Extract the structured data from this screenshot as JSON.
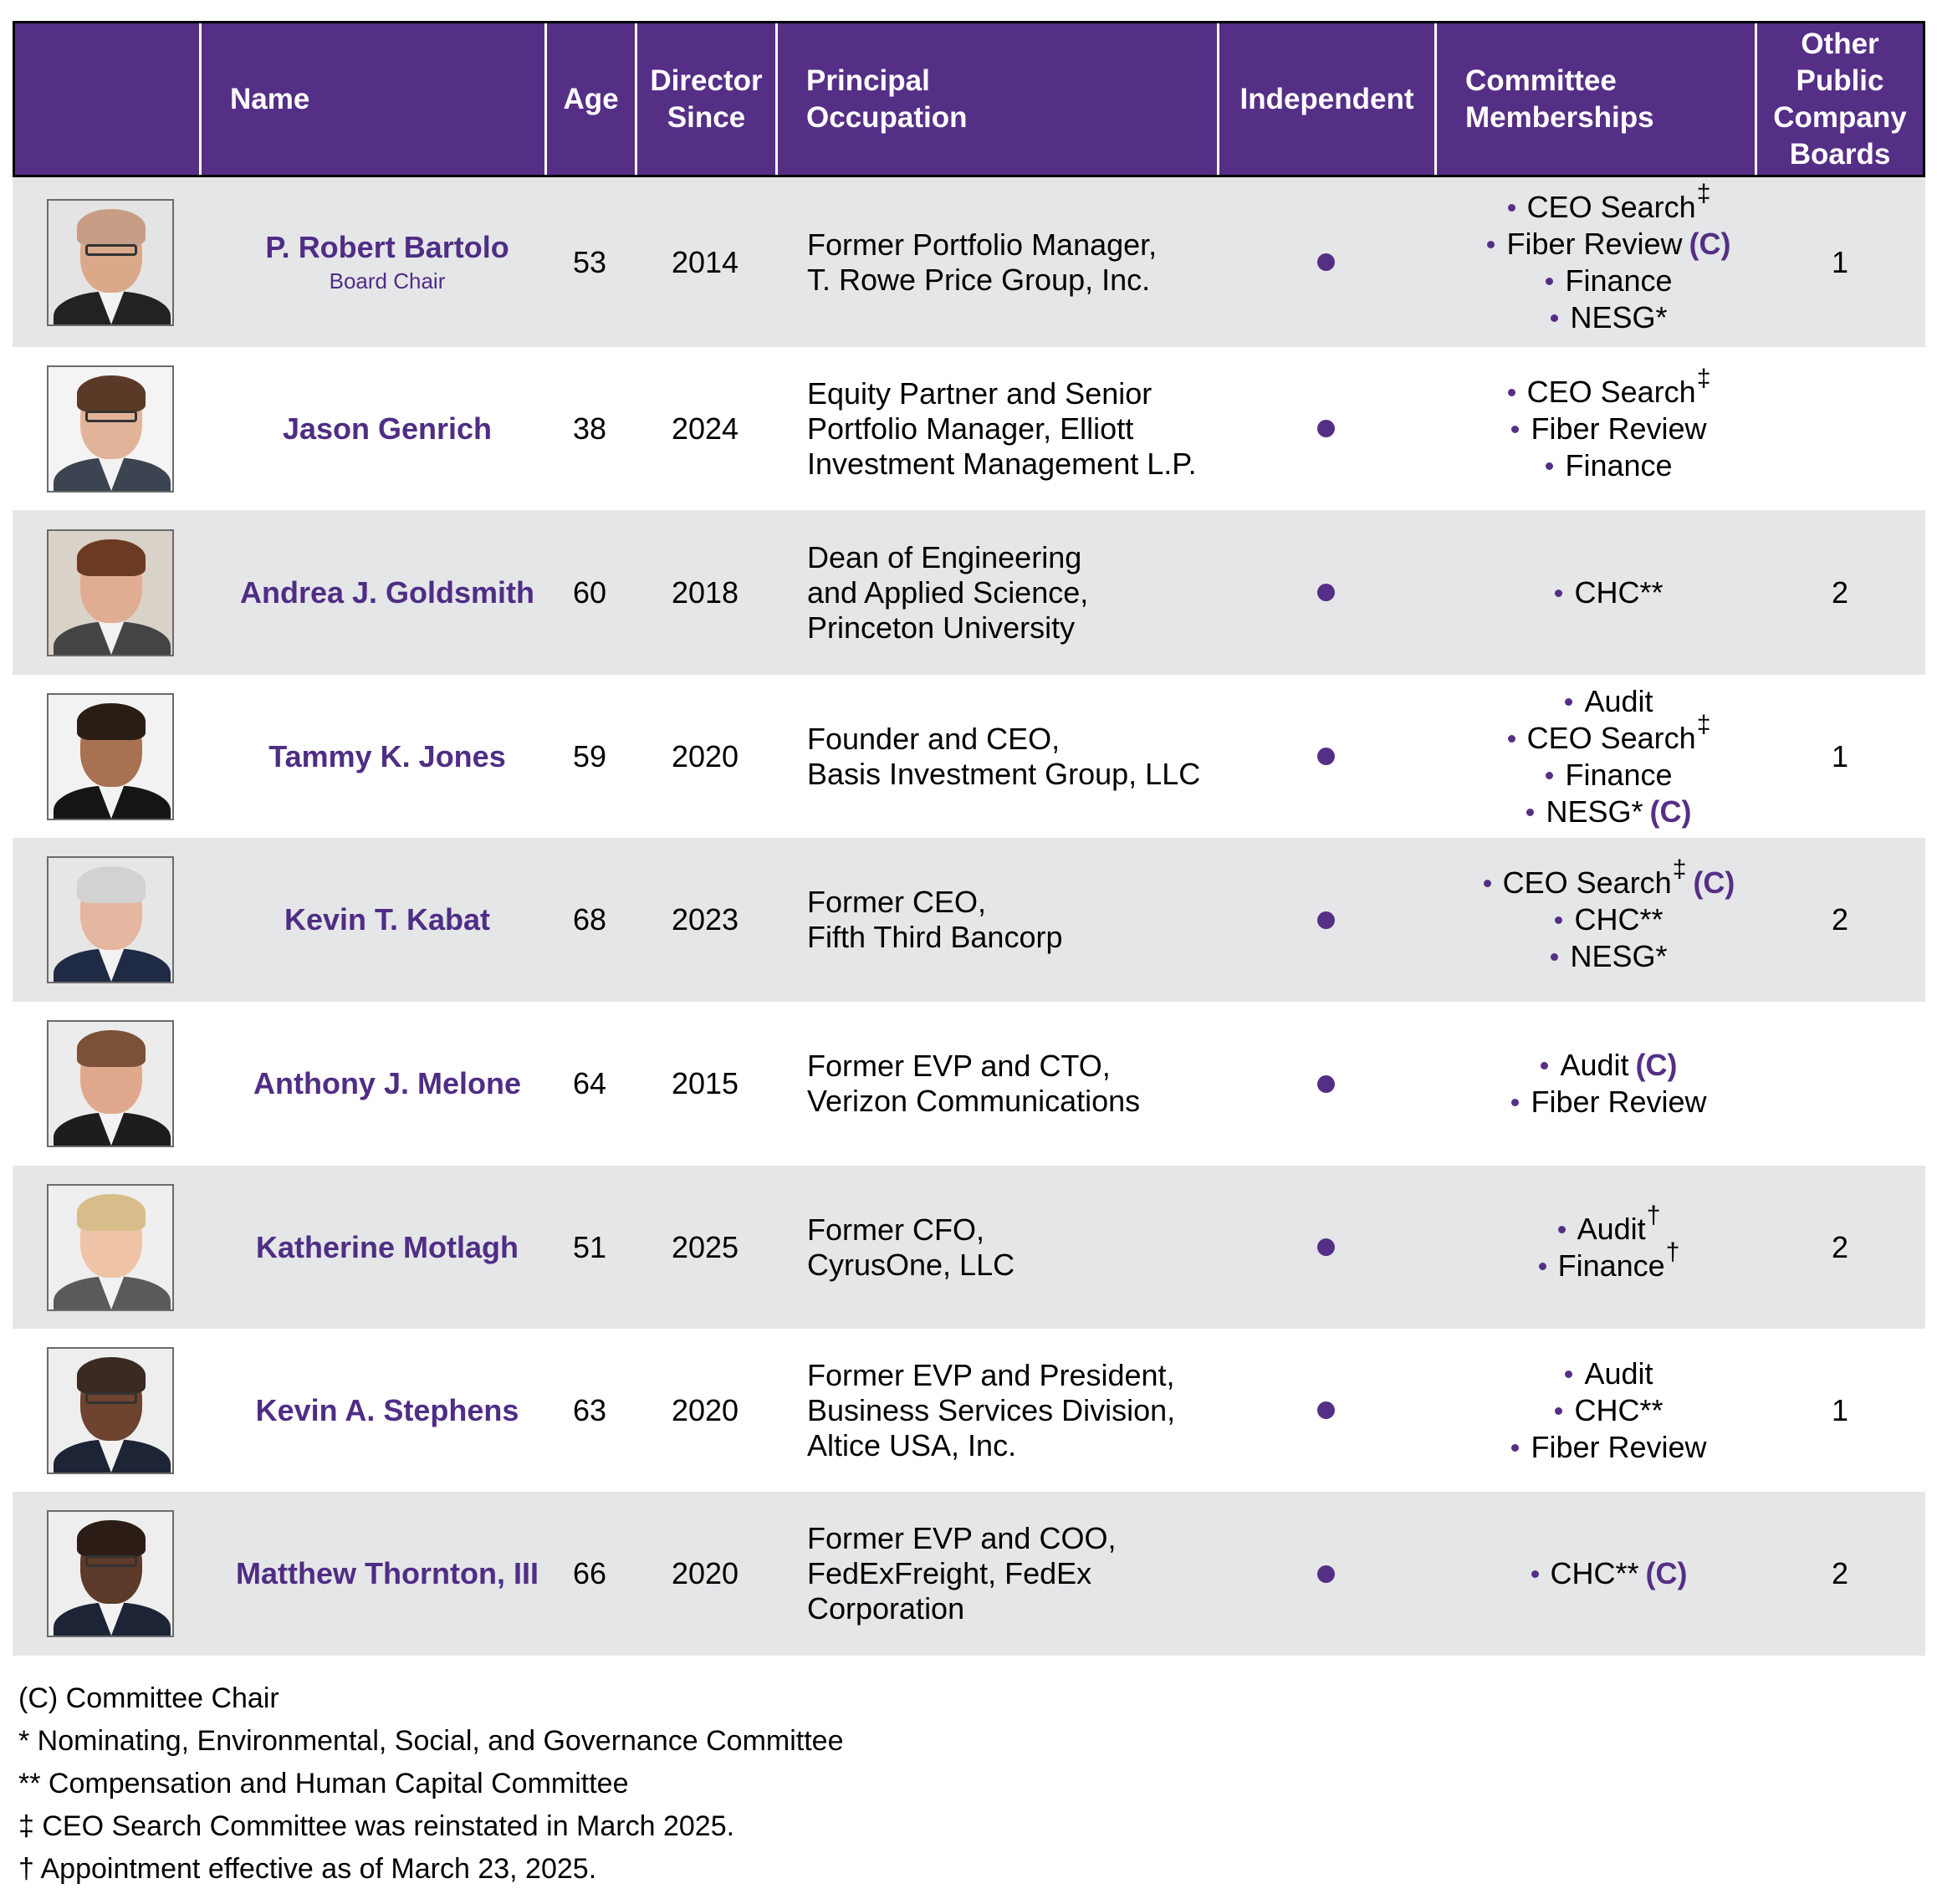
{
  "table": {
    "headers": {
      "photo": "",
      "name": "Name",
      "age": "Age",
      "director_since": "Director\nSince",
      "principal_occupation": "Principal\nOccupation",
      "independent": "Independent",
      "committee_memberships": "Committee\nMemberships",
      "other_boards": "Other\nPublic\nCompany\nBoards"
    },
    "rows": [
      {
        "name": "P. Robert Bartolo",
        "subtitle": "Board Chair",
        "age": "53",
        "director_since": "2014",
        "occupation": "Former Portfolio Manager,\nT. Rowe Price Group, Inc.",
        "independent": true,
        "committees": [
          {
            "label": "CEO Search",
            "mark": "‡",
            "chair": ""
          },
          {
            "label": "Fiber Review",
            "mark": "",
            "chair": "(C)"
          },
          {
            "label": "Finance",
            "mark": "",
            "chair": ""
          },
          {
            "label": "NESG*",
            "mark": "",
            "chair": ""
          }
        ],
        "other_boards": "1"
      },
      {
        "name": "Jason Genrich",
        "subtitle": "",
        "age": "38",
        "director_since": "2024",
        "occupation": "Equity Partner and Senior\nPortfolio Manager, Elliott\nInvestment Management L.P.",
        "independent": true,
        "committees": [
          {
            "label": "CEO Search",
            "mark": "‡",
            "chair": ""
          },
          {
            "label": "Fiber Review",
            "mark": "",
            "chair": ""
          },
          {
            "label": "Finance",
            "mark": "",
            "chair": ""
          }
        ],
        "other_boards": ""
      },
      {
        "name": "Andrea J. Goldsmith",
        "subtitle": "",
        "age": "60",
        "director_since": "2018",
        "occupation": "Dean of Engineering\nand Applied Science,\nPrinceton University",
        "independent": true,
        "committees": [
          {
            "label": "CHC**",
            "mark": "",
            "chair": ""
          }
        ],
        "other_boards": "2"
      },
      {
        "name": "Tammy K. Jones",
        "subtitle": "",
        "age": "59",
        "director_since": "2020",
        "occupation": "Founder and CEO,\nBasis Investment Group, LLC",
        "independent": true,
        "committees": [
          {
            "label": "Audit",
            "mark": "",
            "chair": ""
          },
          {
            "label": "CEO Search",
            "mark": "‡",
            "chair": ""
          },
          {
            "label": "Finance",
            "mark": "",
            "chair": ""
          },
          {
            "label": "NESG*",
            "mark": "",
            "chair": "(C)"
          }
        ],
        "other_boards": "1"
      },
      {
        "name": "Kevin T. Kabat",
        "subtitle": "",
        "age": "68",
        "director_since": "2023",
        "occupation": "Former CEO,\nFifth Third Bancorp",
        "independent": true,
        "committees": [
          {
            "label": "CEO Search",
            "mark": "‡",
            "chair": "(C)"
          },
          {
            "label": "CHC**",
            "mark": "",
            "chair": ""
          },
          {
            "label": "NESG*",
            "mark": "",
            "chair": ""
          }
        ],
        "other_boards": "2"
      },
      {
        "name": "Anthony J. Melone",
        "subtitle": "",
        "age": "64",
        "director_since": "2015",
        "occupation": "Former EVP and CTO,\nVerizon Communications",
        "independent": true,
        "committees": [
          {
            "label": "Audit",
            "mark": "",
            "chair": "(C)"
          },
          {
            "label": "Fiber Review",
            "mark": "",
            "chair": ""
          }
        ],
        "other_boards": ""
      },
      {
        "name": "Katherine Motlagh",
        "subtitle": "",
        "age": "51",
        "director_since": "2025",
        "occupation": "Former CFO,\nCyrusOne, LLC",
        "independent": true,
        "committees": [
          {
            "label": "Audit",
            "mark": "†",
            "chair": ""
          },
          {
            "label": "Finance",
            "mark": "†",
            "chair": ""
          }
        ],
        "other_boards": "2"
      },
      {
        "name": "Kevin A. Stephens",
        "subtitle": "",
        "age": "63",
        "director_since": "2020",
        "occupation": "Former EVP and President,\nBusiness Services Division,\nAltice USA, Inc.",
        "independent": true,
        "committees": [
          {
            "label": "Audit",
            "mark": "",
            "chair": ""
          },
          {
            "label": "CHC**",
            "mark": "",
            "chair": ""
          },
          {
            "label": "Fiber Review",
            "mark": "",
            "chair": ""
          }
        ],
        "other_boards": "1"
      },
      {
        "name": "Matthew Thornton, III",
        "subtitle": "",
        "age": "66",
        "director_since": "2020",
        "occupation": "Former EVP and COO,\nFedExFreight, FedEx\nCorporation",
        "independent": true,
        "committees": [
          {
            "label": "CHC**",
            "mark": "",
            "chair": "(C)"
          }
        ],
        "other_boards": "2"
      }
    ]
  },
  "footnotes": [
    "(C) Committee Chair",
    "* Nominating, Environmental, Social, and Governance Committee",
    "** Compensation and Human Capital Committee",
    "‡ CEO Search Committee was reinstated in March 2025.",
    "† Appointment effective as of March 23, 2025."
  ],
  "colors": {
    "header_bg": "#552f86",
    "name_text": "#4f2d85",
    "row_stripe": "#e5e6e8",
    "accent_dot": "#552f86"
  }
}
